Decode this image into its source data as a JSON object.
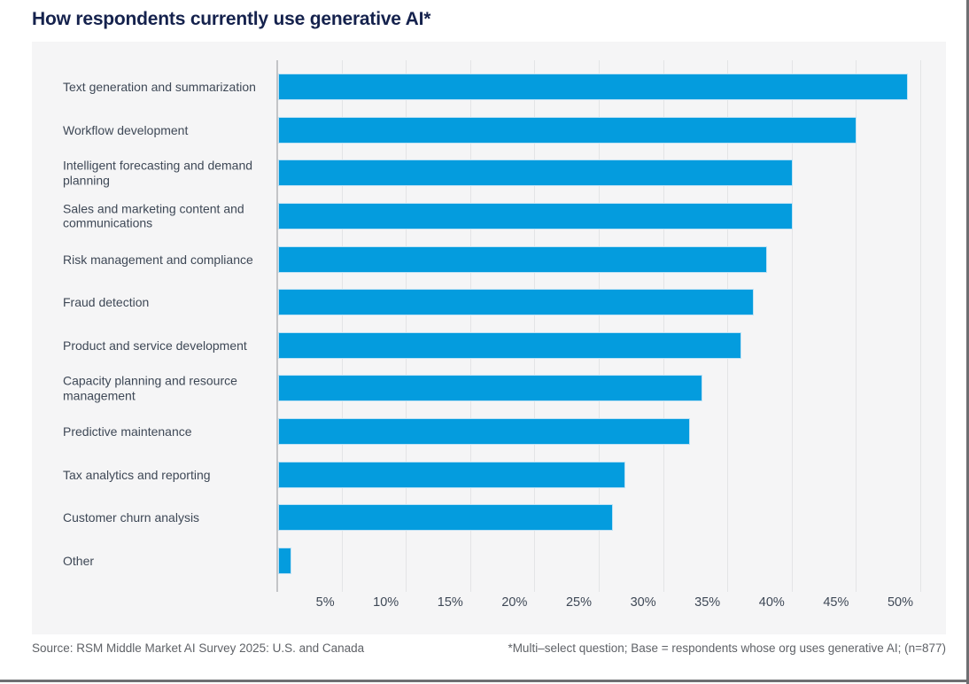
{
  "title": "How respondents currently use generative AI*",
  "footer": {
    "source": "Source: RSM Middle Market AI Survey 2025: U.S. and Canada",
    "note": "*Multi–select question; Base = respondents whose org uses generative AI; (n=877)"
  },
  "colors": {
    "bar": "#049CDE",
    "bar_border": "#BFE2F5",
    "title": "#15224D",
    "label": "#3E4856",
    "panel_bg": "#F5F5F6",
    "gridline": "#E3E4E6",
    "axis_line": "#C3C4C7",
    "footer_text": "#5F6267",
    "frame_border": "#6E6F72",
    "page_bg": "#FFFFFF"
  },
  "chart_data": {
    "type": "bar",
    "orientation": "horizontal",
    "title": "How respondents currently use generative AI*",
    "categories": [
      "Text generation and summarization",
      "Workflow development",
      "Intelligent forecasting and demand planning",
      "Sales and marketing content and communications",
      "Risk management and compliance",
      "Fraud detection",
      "Product and service development",
      "Capacity planning and resource management",
      "Predictive maintenance",
      "Tax analytics and reporting",
      "Customer churn analysis",
      "Other"
    ],
    "values": [
      49,
      45,
      40,
      40,
      38,
      37,
      36,
      33,
      32,
      27,
      26,
      1
    ],
    "unit": "%",
    "xlabel": "",
    "ylabel": "",
    "xlim": [
      0,
      52
    ],
    "xtick_values": [
      5,
      10,
      15,
      20,
      25,
      30,
      35,
      40,
      45,
      50
    ],
    "xticks": [
      "5%",
      "10%",
      "15%",
      "20%",
      "25%",
      "30%",
      "35%",
      "40%",
      "45%",
      "50%"
    ],
    "grid": true,
    "legend": false,
    "bar_color": "#049CDE"
  }
}
